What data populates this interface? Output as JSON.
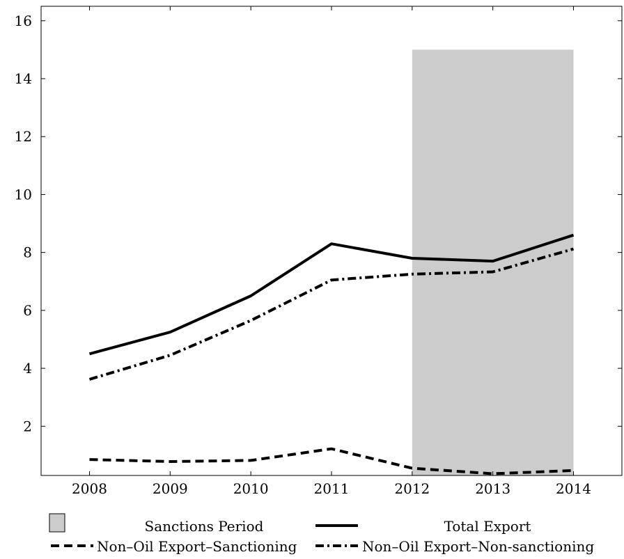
{
  "chart_data": {
    "type": "line",
    "title": "",
    "xlabel": "",
    "ylabel": "",
    "x": [
      2008,
      2009,
      2010,
      2011,
      2012,
      2013,
      2014
    ],
    "x_tick_labels": [
      "2008",
      "2009",
      "2010",
      "2011",
      "2012",
      "2013",
      "2014"
    ],
    "xlim": [
      2007.4,
      2014.6
    ],
    "y_ticks": [
      2,
      4,
      6,
      8,
      10,
      12,
      14,
      16
    ],
    "y_tick_labels": [
      "2",
      "4",
      "6",
      "8",
      "10",
      "12",
      "14",
      "16"
    ],
    "ylim": [
      0.3,
      16.5
    ],
    "grid": false,
    "legend_placement": "bottom",
    "shaded_region": {
      "label": "Sanctions Period",
      "x_start": 2012,
      "x_end": 2014,
      "y_top": 15,
      "color": "#cccccc"
    },
    "series": [
      {
        "name": "Total Export",
        "style": "solid",
        "values": [
          4.5,
          5.25,
          6.5,
          8.3,
          7.8,
          7.7,
          8.6
        ]
      },
      {
        "name": "Non–Oil Export–Sanctioning",
        "style": "dashed",
        "values": [
          0.85,
          0.78,
          0.82,
          1.22,
          0.55,
          0.36,
          0.47
        ]
      },
      {
        "name": "Non–Oil Export–Non-sanctioning",
        "style": "dashdot",
        "values": [
          3.62,
          4.45,
          5.65,
          7.05,
          7.25,
          7.33,
          8.12
        ]
      }
    ]
  }
}
